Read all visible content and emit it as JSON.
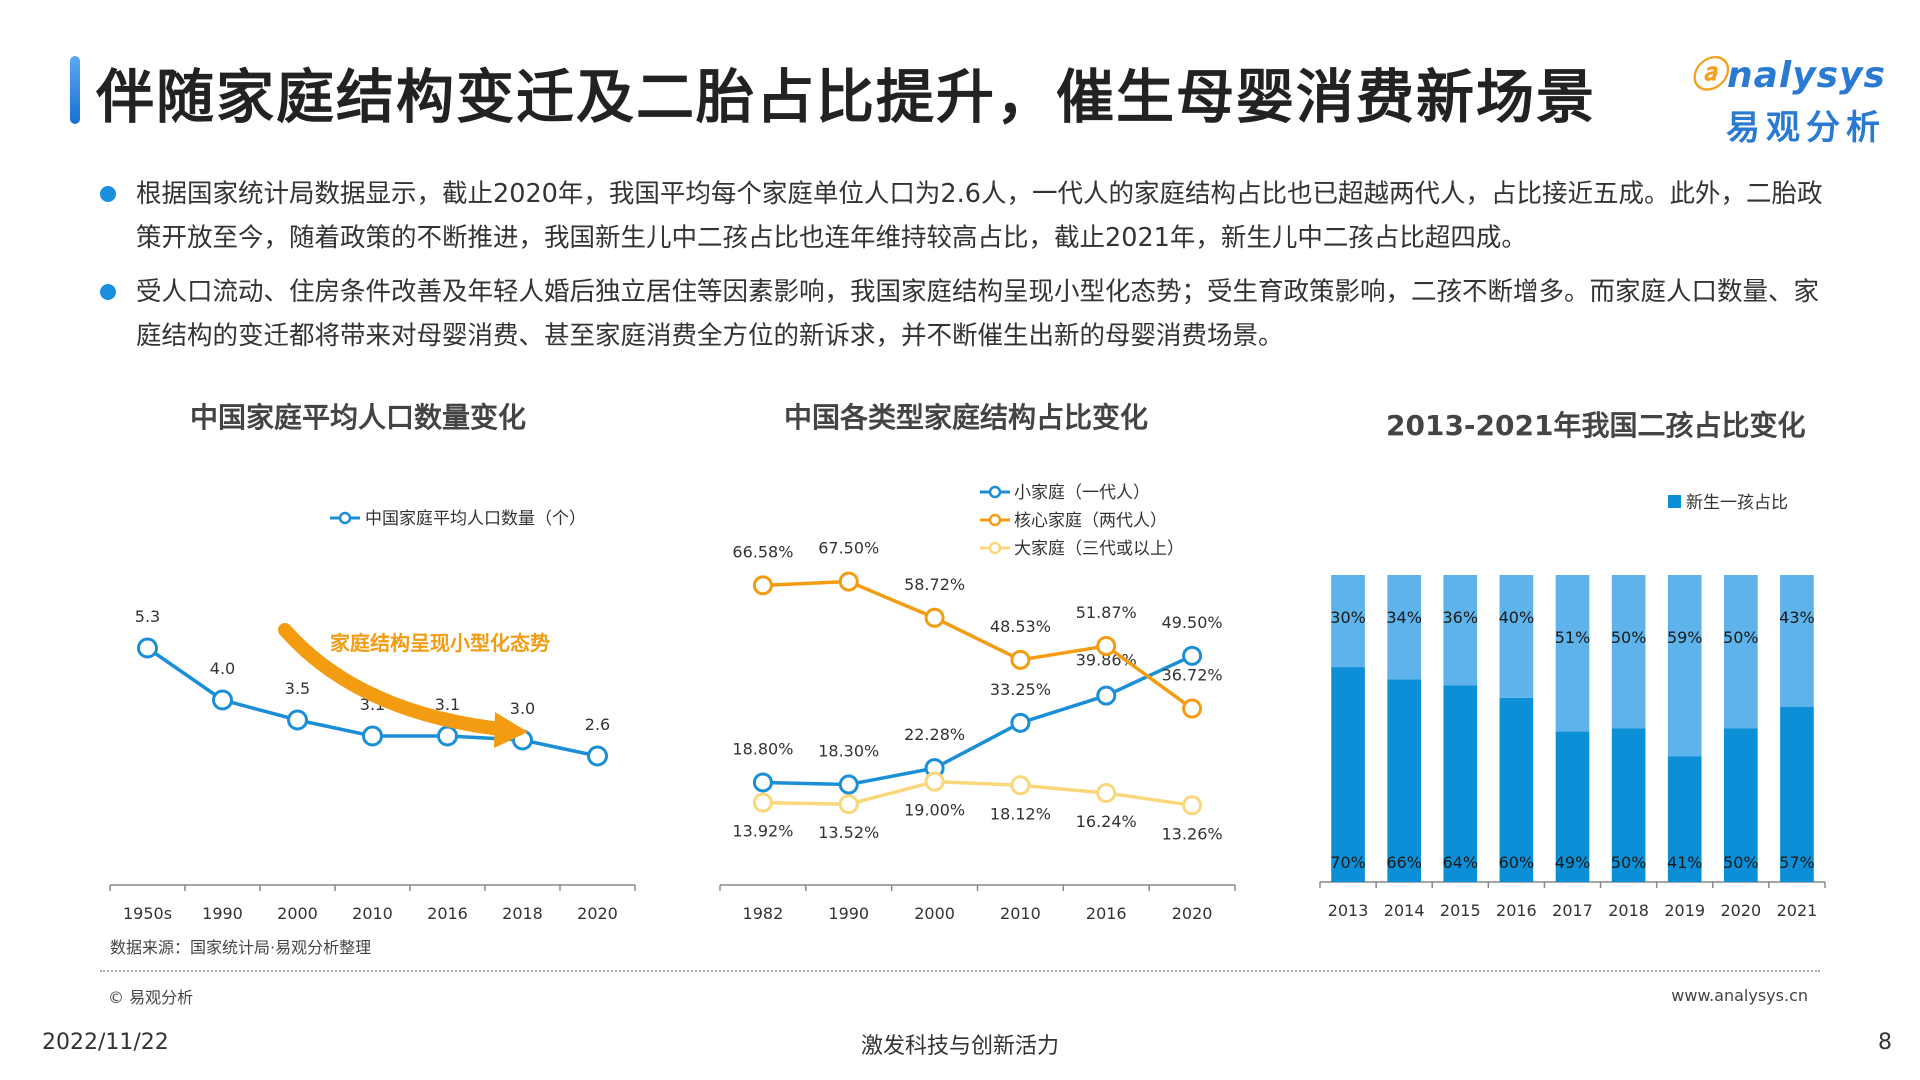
{
  "page": {
    "title": "伴随家庭结构变迁及二胎占比提升，催生母婴消费新场景",
    "logo_text": "nalysys",
    "logo_o": "ⓐ",
    "logo_cn": "易观分析",
    "bullets": [
      "根据国家统计局数据显示，截止2020年，我国平均每个家庭单位人口为2.6人，一代人的家庭结构占比也已超越两代人，占比接近五成。此外，二胎政策开放至今，随着政策的不断推进，我国新生儿中二孩占比也连年维持较高占比，截止2021年，新生儿中二孩占比超四成。",
      "受人口流动、住房条件改善及年轻人婚后独立居住等因素影响，我国家庭结构呈现小型化态势；受生育政策影响，二孩不断增多。而家庭人口数量、家庭结构的变迁都将带来对母婴消费、甚至家庭消费全方位的新诉求，并不断催生出新的母婴消费场景。"
    ],
    "source": "数据来源：国家统计局·易观分析整理",
    "copyright": "© 易观分析",
    "website": "www.analysys.cn",
    "date": "2022/11/22",
    "slogan": "激发科技与创新活力",
    "page_number": "8"
  },
  "chart_data": [
    {
      "type": "line",
      "title": "中国家庭平均人口数量变化",
      "categories": [
        "1950s",
        "1990",
        "2000",
        "2010",
        "2016",
        "2018",
        "2020"
      ],
      "series": [
        {
          "name": "中国家庭平均人口数量（个）",
          "color": "#1a8fd6",
          "values": [
            5.3,
            4.0,
            3.5,
            3.1,
            3.1,
            3.0,
            2.6
          ]
        }
      ],
      "data_labels": [
        "5.3",
        "4.0",
        "3.5",
        "3.1",
        "3.1",
        "3.0",
        "2.6"
      ],
      "ylim": [
        0,
        8
      ],
      "annotation": {
        "text": "家庭结构呈现小型化态势",
        "color": "#f39c12"
      },
      "legend": "top-center",
      "grid": false
    },
    {
      "type": "line",
      "title": "中国各类型家庭结构占比变化",
      "categories": [
        "1982",
        "1990",
        "2000",
        "2010",
        "2016",
        "2020"
      ],
      "series": [
        {
          "name": "小家庭（一代人）",
          "color": "#1a8fd6",
          "values": [
            18.8,
            18.3,
            22.28,
            33.25,
            39.86,
            49.5
          ],
          "labels": [
            "18.80%",
            "18.30%",
            "22.28%",
            "33.25%",
            "39.86%",
            "49.50%"
          ]
        },
        {
          "name": "核心家庭（两代人）",
          "color": "#f39c12",
          "values": [
            66.58,
            67.5,
            58.72,
            48.53,
            51.87,
            36.72
          ],
          "labels": [
            "66.58%",
            "67.50%",
            "58.72%",
            "48.53%",
            "51.87%",
            "36.72%"
          ]
        },
        {
          "name": "大家庭（三代或以上）",
          "color": "#f9d77a",
          "values": [
            13.92,
            13.52,
            19.0,
            18.12,
            16.24,
            13.26
          ],
          "labels": [
            "13.92%",
            "13.52%",
            "19.00%",
            "18.12%",
            "16.24%",
            "13.26%"
          ]
        }
      ],
      "ylim": [
        0,
        80
      ],
      "legend": "top-right",
      "grid": false
    },
    {
      "type": "bar",
      "stacked": true,
      "title": "2013-2021年我国二孩占比变化",
      "categories": [
        "2013",
        "2014",
        "2015",
        "2016",
        "2017",
        "2018",
        "2019",
        "2020",
        "2021"
      ],
      "series": [
        {
          "name": "新生一孩占比",
          "color": "#0d8fd8",
          "values": [
            70,
            66,
            64,
            60,
            49,
            50,
            41,
            50,
            57
          ],
          "labels": [
            "70%",
            "66%",
            "64%",
            "60%",
            "49%",
            "50%",
            "41%",
            "50%",
            "57%"
          ]
        },
        {
          "name": "",
          "color": "#5eb3ea",
          "values": [
            30,
            34,
            36,
            40,
            51,
            50,
            59,
            50,
            43
          ],
          "labels": [
            "30%",
            "34%",
            "36%",
            "40%",
            "51%",
            "50%",
            "59%",
            "50%",
            "43%"
          ]
        }
      ],
      "ylim": [
        0,
        100
      ],
      "legend": "top-right",
      "grid": false
    }
  ]
}
